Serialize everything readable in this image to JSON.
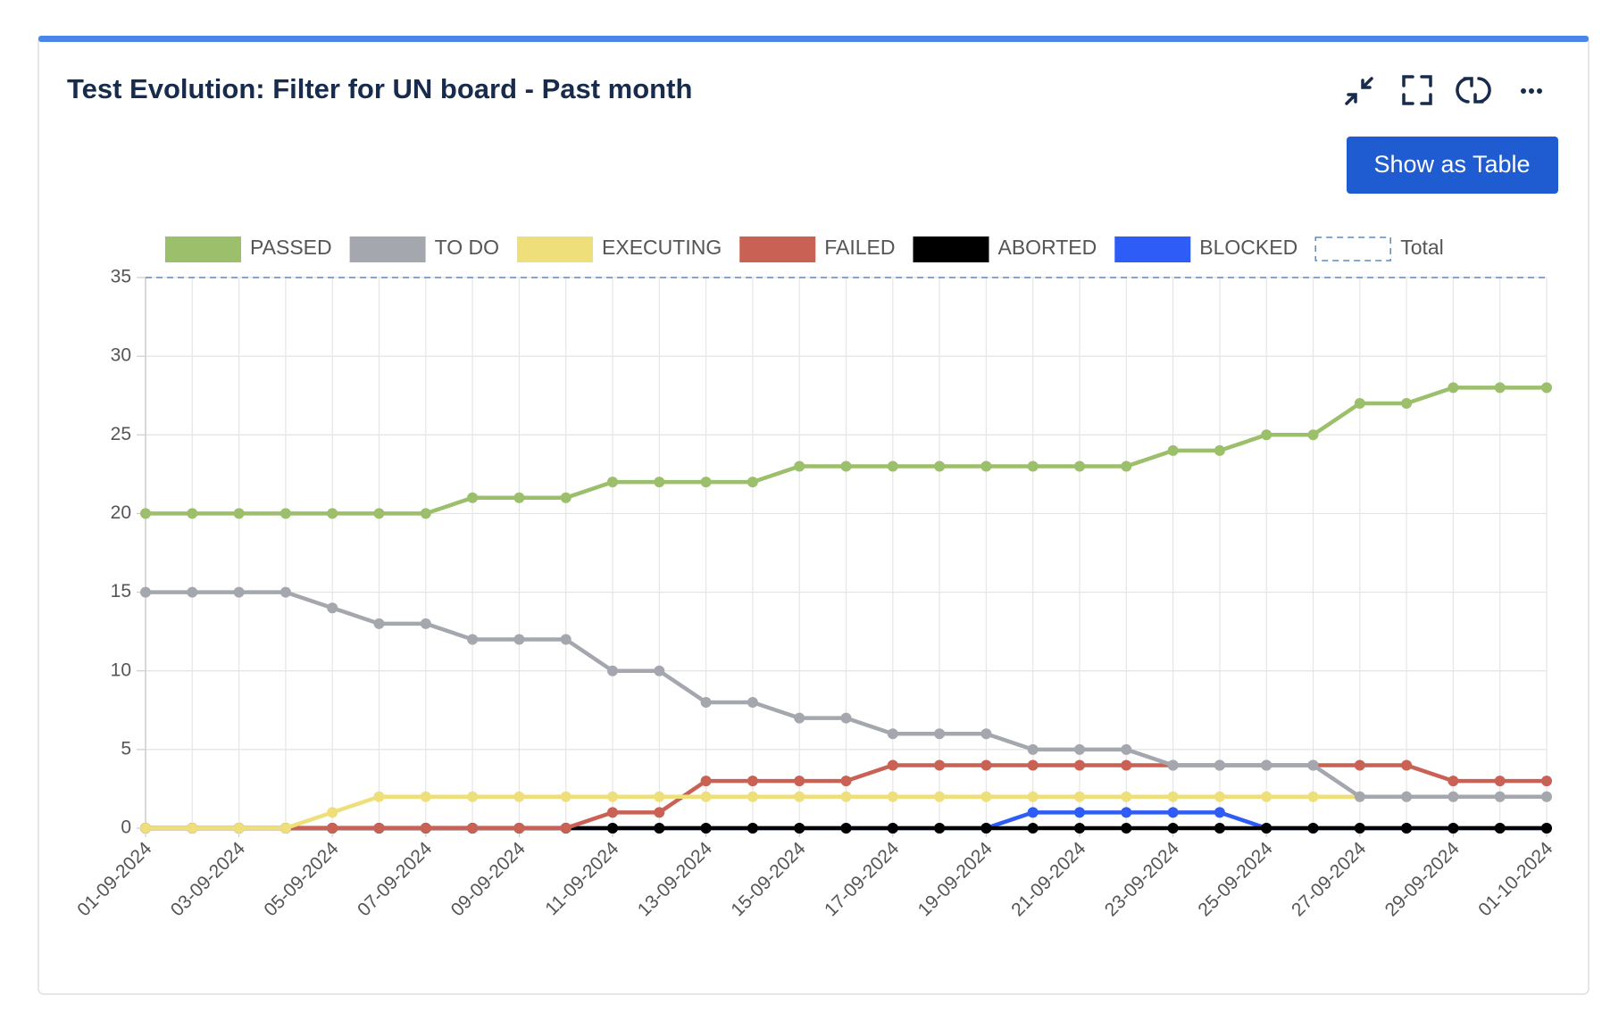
{
  "header": {
    "title": "Test Evolution: Filter for UN board - Past month"
  },
  "actions": {
    "button": "Show as Table"
  },
  "chart_data": {
    "type": "line",
    "categories": [
      "01-09-2024",
      null,
      "03-09-2024",
      null,
      "05-09-2024",
      null,
      "07-09-2024",
      null,
      "09-09-2024",
      null,
      "11-09-2024",
      null,
      "13-09-2024",
      null,
      "15-09-2024",
      null,
      "17-09-2024",
      null,
      "19-09-2024",
      null,
      "21-09-2024",
      null,
      "23-09-2024",
      null,
      "25-09-2024",
      null,
      "27-09-2024",
      null,
      "29-09-2024",
      null,
      "01-10-2024"
    ],
    "series": [
      {
        "name": "PASSED",
        "color": "#9bbf6a",
        "values": [
          20,
          20,
          20,
          20,
          20,
          20,
          20,
          21,
          21,
          21,
          22,
          22,
          22,
          22,
          23,
          23,
          23,
          23,
          23,
          23,
          23,
          23,
          24,
          24,
          25,
          25,
          27,
          27,
          28,
          28,
          28
        ]
      },
      {
        "name": "TO DO",
        "color": "#a4a8ae",
        "values": [
          15,
          15,
          15,
          15,
          14,
          13,
          13,
          12,
          12,
          12,
          10,
          10,
          8,
          8,
          7,
          7,
          6,
          6,
          6,
          5,
          5,
          5,
          4,
          4,
          4,
          4,
          2,
          2,
          2,
          2,
          2
        ]
      },
      {
        "name": "EXECUTING",
        "color": "#eedf7a",
        "values": [
          0,
          0,
          0,
          0,
          1,
          2,
          2,
          2,
          2,
          2,
          2,
          2,
          2,
          2,
          2,
          2,
          2,
          2,
          2,
          2,
          2,
          2,
          2,
          2,
          2,
          2,
          2,
          2,
          2,
          2,
          2
        ]
      },
      {
        "name": "FAILED",
        "color": "#c96255",
        "values": [
          0,
          0,
          0,
          0,
          0,
          0,
          0,
          0,
          0,
          0,
          1,
          1,
          3,
          3,
          3,
          3,
          4,
          4,
          4,
          4,
          4,
          4,
          4,
          4,
          4,
          4,
          4,
          4,
          3,
          3,
          3
        ]
      },
      {
        "name": "ABORTED",
        "color": "#000000",
        "values": [
          0,
          0,
          0,
          0,
          0,
          0,
          0,
          0,
          0,
          0,
          0,
          0,
          0,
          0,
          0,
          0,
          0,
          0,
          0,
          0,
          0,
          0,
          0,
          0,
          0,
          0,
          0,
          0,
          0,
          0,
          0
        ]
      },
      {
        "name": "BLOCKED",
        "color": "#2e5cf6",
        "values": [
          0,
          0,
          0,
          0,
          0,
          0,
          0,
          0,
          0,
          0,
          0,
          0,
          0,
          0,
          0,
          0,
          0,
          0,
          0,
          1,
          1,
          1,
          1,
          1,
          0,
          0,
          0,
          0,
          0,
          0,
          0
        ]
      },
      {
        "name": "Total",
        "color": "#5b8ac6",
        "dashed": true,
        "values": [
          35,
          35,
          35,
          35,
          35,
          35,
          35,
          35,
          35,
          35,
          35,
          35,
          35,
          35,
          35,
          35,
          35,
          35,
          35,
          35,
          35,
          35,
          35,
          35,
          35,
          35,
          35,
          35,
          35,
          35,
          35
        ]
      }
    ],
    "ylim": [
      0,
      35
    ],
    "yticks": [
      0,
      5,
      10,
      15,
      20,
      25,
      30,
      35
    ],
    "grid": true
  }
}
